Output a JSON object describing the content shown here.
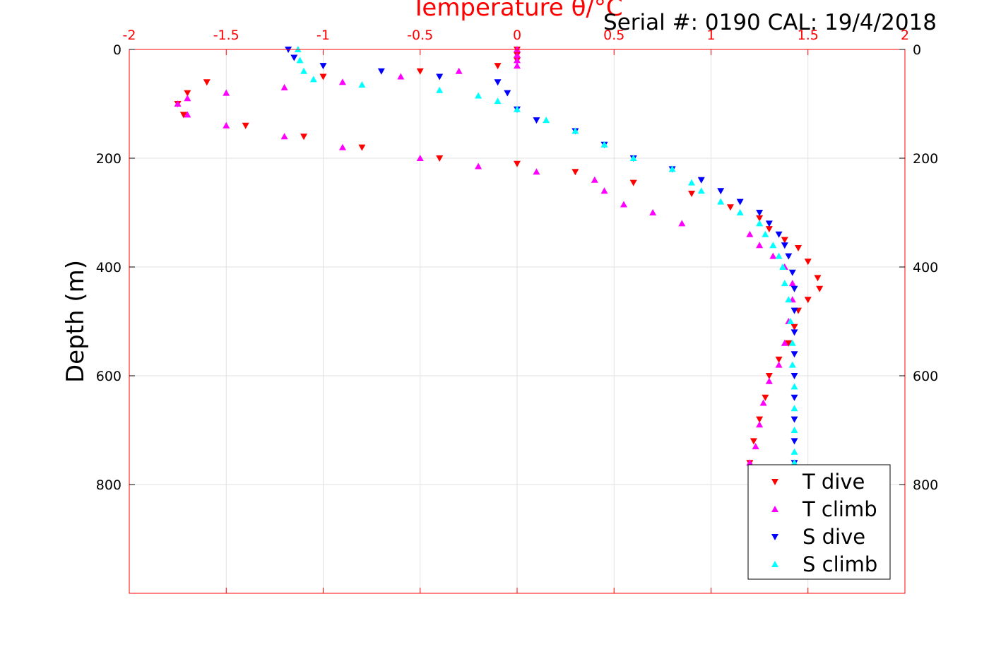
{
  "header": {
    "serial_text": "Serial #: 0190  CAL: 19/4/2018"
  },
  "chart_data": {
    "type": "scatter",
    "title": "",
    "xlabel": "Temperature θ/°C",
    "ylabel": "Depth (m)",
    "xlim": [
      -2,
      2
    ],
    "ylim": [
      0,
      1000
    ],
    "y_reversed": true,
    "x_axis_position": "top",
    "x_ticks": [
      -2,
      -1.5,
      -1,
      -0.5,
      0,
      0.5,
      1,
      1.5,
      2
    ],
    "x_tick_labels": [
      "-2",
      "-1.5",
      "-1",
      "-0.5",
      "0",
      "0.5",
      "1",
      "1.5",
      "2"
    ],
    "y_ticks": [
      0,
      200,
      400,
      600,
      800
    ],
    "y_tick_labels": [
      "0",
      "200",
      "400",
      "600",
      "800"
    ],
    "grid": true,
    "legend_position": "bottom-right",
    "colors": {
      "axis": "#ff0000",
      "text": "#000000",
      "grid": "#e1e1e1"
    },
    "series": [
      {
        "name": "T dive",
        "color": "#ff0000",
        "marker": "triangle-down",
        "points": [
          [
            0.0,
            0
          ],
          [
            0.0,
            10
          ],
          [
            0.0,
            20
          ],
          [
            -0.1,
            30
          ],
          [
            -0.5,
            40
          ],
          [
            -1.0,
            50
          ],
          [
            -1.6,
            60
          ],
          [
            -1.7,
            80
          ],
          [
            -1.75,
            100
          ],
          [
            -1.72,
            120
          ],
          [
            -1.4,
            140
          ],
          [
            -1.1,
            160
          ],
          [
            -0.8,
            180
          ],
          [
            -0.4,
            200
          ],
          [
            0.0,
            210
          ],
          [
            0.3,
            225
          ],
          [
            0.6,
            245
          ],
          [
            0.9,
            265
          ],
          [
            1.1,
            290
          ],
          [
            1.25,
            310
          ],
          [
            1.3,
            330
          ],
          [
            1.38,
            350
          ],
          [
            1.45,
            365
          ],
          [
            1.5,
            390
          ],
          [
            1.55,
            420
          ],
          [
            1.56,
            440
          ],
          [
            1.5,
            460
          ],
          [
            1.45,
            480
          ],
          [
            1.43,
            510
          ],
          [
            1.4,
            540
          ],
          [
            1.35,
            570
          ],
          [
            1.3,
            600
          ],
          [
            1.28,
            640
          ],
          [
            1.25,
            680
          ],
          [
            1.22,
            720
          ],
          [
            1.2,
            760
          ]
        ]
      },
      {
        "name": "T climb",
        "color": "#ff00ff",
        "marker": "triangle-up",
        "points": [
          [
            0.0,
            0
          ],
          [
            0.0,
            10
          ],
          [
            0.0,
            20
          ],
          [
            0.0,
            30
          ],
          [
            -0.3,
            40
          ],
          [
            -0.6,
            50
          ],
          [
            -0.9,
            60
          ],
          [
            -1.2,
            70
          ],
          [
            -1.5,
            80
          ],
          [
            -1.7,
            90
          ],
          [
            -1.75,
            100
          ],
          [
            -1.7,
            120
          ],
          [
            -1.5,
            140
          ],
          [
            -1.2,
            160
          ],
          [
            -0.9,
            180
          ],
          [
            -0.5,
            200
          ],
          [
            -0.2,
            215
          ],
          [
            0.1,
            225
          ],
          [
            0.4,
            240
          ],
          [
            0.45,
            260
          ],
          [
            0.55,
            285
          ],
          [
            0.7,
            300
          ],
          [
            0.85,
            320
          ],
          [
            1.2,
            340
          ],
          [
            1.25,
            360
          ],
          [
            1.32,
            380
          ],
          [
            1.38,
            400
          ],
          [
            1.42,
            430
          ],
          [
            1.42,
            460
          ],
          [
            1.4,
            500
          ],
          [
            1.38,
            540
          ],
          [
            1.35,
            580
          ],
          [
            1.3,
            610
          ],
          [
            1.27,
            650
          ],
          [
            1.25,
            690
          ],
          [
            1.23,
            730
          ],
          [
            1.2,
            760
          ]
        ]
      },
      {
        "name": "S dive",
        "color": "#0000ff",
        "marker": "triangle-down",
        "points": [
          [
            -1.18,
            0
          ],
          [
            -1.15,
            15
          ],
          [
            -1.0,
            30
          ],
          [
            -0.7,
            40
          ],
          [
            -0.4,
            50
          ],
          [
            -0.1,
            60
          ],
          [
            -0.05,
            80
          ],
          [
            0.0,
            110
          ],
          [
            0.1,
            130
          ],
          [
            0.3,
            150
          ],
          [
            0.45,
            175
          ],
          [
            0.6,
            200
          ],
          [
            0.8,
            220
          ],
          [
            0.95,
            240
          ],
          [
            1.05,
            260
          ],
          [
            1.15,
            280
          ],
          [
            1.25,
            300
          ],
          [
            1.3,
            320
          ],
          [
            1.35,
            340
          ],
          [
            1.38,
            360
          ],
          [
            1.4,
            380
          ],
          [
            1.42,
            410
          ],
          [
            1.43,
            440
          ],
          [
            1.43,
            480
          ],
          [
            1.43,
            520
          ],
          [
            1.43,
            560
          ],
          [
            1.43,
            600
          ],
          [
            1.43,
            640
          ],
          [
            1.43,
            680
          ],
          [
            1.43,
            720
          ],
          [
            1.43,
            760
          ]
        ]
      },
      {
        "name": "S climb",
        "color": "#00ffff",
        "marker": "triangle-up",
        "points": [
          [
            -1.13,
            0
          ],
          [
            -1.12,
            20
          ],
          [
            -1.1,
            40
          ],
          [
            -1.05,
            55
          ],
          [
            -0.8,
            65
          ],
          [
            -0.4,
            75
          ],
          [
            -0.2,
            85
          ],
          [
            -0.1,
            95
          ],
          [
            0.0,
            110
          ],
          [
            0.15,
            130
          ],
          [
            0.3,
            150
          ],
          [
            0.45,
            175
          ],
          [
            0.6,
            200
          ],
          [
            0.8,
            220
          ],
          [
            0.9,
            245
          ],
          [
            0.95,
            260
          ],
          [
            1.05,
            280
          ],
          [
            1.15,
            300
          ],
          [
            1.25,
            320
          ],
          [
            1.28,
            340
          ],
          [
            1.32,
            360
          ],
          [
            1.35,
            380
          ],
          [
            1.37,
            400
          ],
          [
            1.38,
            430
          ],
          [
            1.4,
            460
          ],
          [
            1.41,
            500
          ],
          [
            1.42,
            540
          ],
          [
            1.42,
            580
          ],
          [
            1.43,
            620
          ],
          [
            1.43,
            660
          ],
          [
            1.43,
            700
          ],
          [
            1.43,
            740
          ],
          [
            1.43,
            760
          ]
        ]
      }
    ]
  }
}
